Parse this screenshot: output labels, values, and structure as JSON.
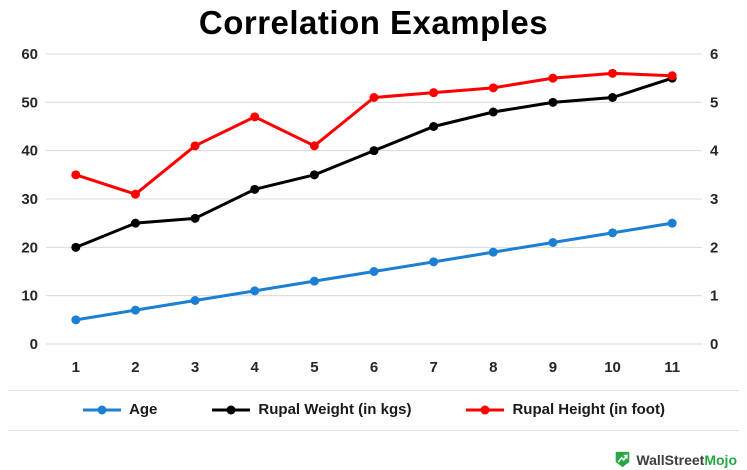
{
  "title": "Correlation Examples",
  "chart_data": {
    "type": "line",
    "x": [
      1,
      2,
      3,
      4,
      5,
      6,
      7,
      8,
      9,
      10,
      11
    ],
    "series": [
      {
        "name": "Age",
        "color": "#1d7fd1",
        "axis": "left",
        "values": [
          5,
          7,
          9,
          11,
          13,
          15,
          17,
          19,
          21,
          23,
          25
        ]
      },
      {
        "name": "Rupal Weight (in kgs)",
        "color": "#000000",
        "axis": "left",
        "values": [
          20,
          25,
          26,
          32,
          35,
          40,
          45,
          48,
          50,
          51,
          55
        ]
      },
      {
        "name": "Rupal Height (in foot)",
        "color": "#ff0000",
        "axis": "right",
        "values": [
          3.5,
          3.1,
          4.1,
          4.7,
          4.1,
          5.1,
          5.2,
          5.3,
          5.5,
          5.6,
          5.55
        ]
      }
    ],
    "left_axis": {
      "min": 0,
      "max": 60,
      "ticks": [
        0,
        10,
        20,
        30,
        40,
        50,
        60
      ]
    },
    "right_axis": {
      "min": 0,
      "max": 6,
      "ticks": [
        0,
        1,
        2,
        3,
        4,
        5,
        6
      ]
    },
    "grid": "horizontal",
    "legend_position": "bottom",
    "title": "Correlation Examples",
    "xlabel": "",
    "ylabel": ""
  },
  "branding": {
    "brand_part1": "WallStreet",
    "brand_part2": "Mojo",
    "logo_icon": "green-growth-arrow-shield"
  }
}
